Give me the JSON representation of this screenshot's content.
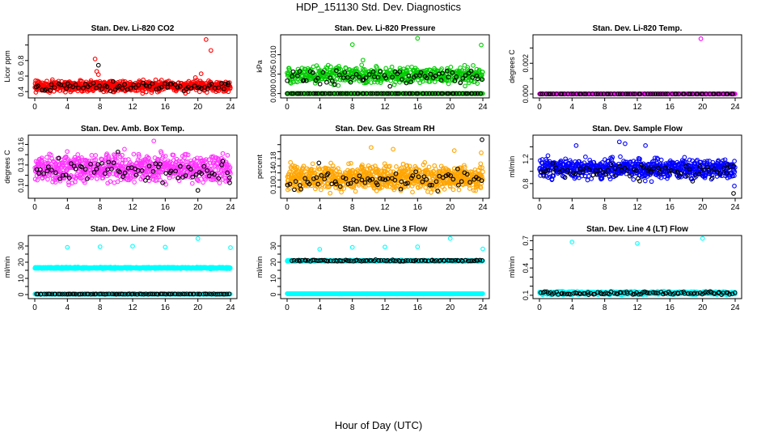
{
  "figure": {
    "title": "HDP_151130  Std. Dev. Diagnostics",
    "xlabel": "Hour of Day (UTC)"
  },
  "chart_data": [
    {
      "type": "scatter",
      "title": "Stan. Dev. Li-820 CO2",
      "xlabel": "",
      "ylabel": "Licor ppm",
      "xlim": [
        0,
        24
      ],
      "ylim": [
        0.35,
        1.1
      ],
      "xticks": [
        0,
        4,
        8,
        12,
        16,
        20,
        24
      ],
      "yticks": [
        0.4,
        0.6,
        0.8,
        1.0
      ],
      "ytick_labels": [
        "0.4",
        "0.6",
        "0.8",
        ""
      ],
      "grid": false,
      "series": [
        {
          "color": "#ff0000",
          "base": 0.47,
          "spread": 0.05,
          "density": 32,
          "x_range": [
            0,
            24
          ],
          "points": [
            [
              7.4,
              0.82
            ],
            [
              7.6,
              0.66
            ],
            [
              7.8,
              0.62
            ],
            [
              19.7,
              0.58
            ],
            [
              20.4,
              0.63
            ],
            [
              21.0,
              1.07
            ],
            [
              21.6,
              0.93
            ]
          ]
        },
        {
          "color": "#000000",
          "base": 0.47,
          "spread": 0.04,
          "density": 3,
          "x_range": [
            0,
            24
          ],
          "points": [
            [
              7.8,
              0.74
            ],
            [
              23.7,
              0.51
            ]
          ]
        }
      ]
    },
    {
      "type": "scatter",
      "title": "Stan. Dev. Li-820 Pressure",
      "xlabel": "",
      "ylabel": "kPa",
      "xlim": [
        0,
        24
      ],
      "ylim": [
        -0.0005,
        0.0145
      ],
      "xticks": [
        0,
        4,
        8,
        12,
        16,
        20,
        24
      ],
      "yticks": [
        0.0,
        0.005,
        0.01
      ],
      "ytick_labels": [
        "0.000",
        "0.005",
        "0.010"
      ],
      "grid": false,
      "series": [
        {
          "color": "#00cc00",
          "base": 0.0,
          "spread": 0.0,
          "density": 22,
          "x_range": [
            0,
            24
          ],
          "points": []
        },
        {
          "color": "#00cc00",
          "base": 0.0048,
          "spread": 0.0016,
          "density": 22,
          "x_range": [
            0,
            24
          ],
          "points": [
            [
              8.0,
              0.0126
            ],
            [
              9.3,
              0.0086
            ],
            [
              16.0,
              0.0142
            ],
            [
              23.8,
              0.0125
            ]
          ]
        },
        {
          "color": "#000000",
          "base": 0.0,
          "spread": 0.0,
          "density": 3,
          "x_range": [
            0,
            24
          ],
          "points": []
        },
        {
          "color": "#000000",
          "base": 0.0045,
          "spread": 0.0014,
          "density": 3,
          "x_range": [
            0,
            24
          ],
          "points": []
        }
      ]
    },
    {
      "type": "scatter",
      "title": "Stan. Dev. Li-820 Temp.",
      "xlabel": "",
      "ylabel": "degrees C",
      "xlim": [
        0,
        24
      ],
      "ylim": [
        -0.0001,
        0.0037
      ],
      "xticks": [
        0,
        4,
        8,
        12,
        16,
        20,
        24
      ],
      "yticks": [
        0.0,
        0.001,
        0.002,
        0.003
      ],
      "ytick_labels": [
        "0.000",
        "",
        "0.002",
        ""
      ],
      "grid": false,
      "series": [
        {
          "color": "#ff00ff",
          "base": 0.0,
          "spread": 0.0,
          "density": 30,
          "x_range": [
            0,
            24
          ],
          "points": [
            [
              19.8,
              0.0036
            ]
          ]
        },
        {
          "color": "#000000",
          "base": 0.0,
          "spread": 0.0,
          "density": 3,
          "x_range": [
            0,
            24
          ],
          "points": []
        }
      ]
    },
    {
      "type": "scatter",
      "title": "Stan. Dev. Amb. Box Temp.",
      "xlabel": "",
      "ylabel": "degrees C",
      "xlim": [
        0,
        24
      ],
      "ylim": [
        0.085,
        0.17
      ],
      "xticks": [
        0,
        4,
        8,
        12,
        16,
        20,
        24
      ],
      "yticks": [
        0.1,
        0.13,
        0.16
      ],
      "ytick_labels": [
        "0.10",
        "0.13",
        "0.16"
      ],
      "extra_yticks": [
        0.115,
        0.145
      ],
      "grid": false,
      "series": [
        {
          "color": "#ff33ff",
          "base": 0.125,
          "spread": 0.015,
          "density": 30,
          "x_range": [
            0,
            24
          ],
          "points": [
            [
              14.6,
              0.165
            ],
            [
              11.0,
              0.153
            ]
          ]
        },
        {
          "color": "#000000",
          "base": 0.122,
          "spread": 0.012,
          "density": 3,
          "x_range": [
            0,
            24
          ],
          "points": [
            [
              10.2,
              0.149
            ],
            [
              20.0,
              0.093
            ],
            [
              23.9,
              0.104
            ]
          ]
        }
      ]
    },
    {
      "type": "scatter",
      "title": "Stan. Dev. Gas Stream RH",
      "xlabel": "",
      "ylabel": "percent",
      "xlim": [
        0,
        24
      ],
      "ylim": [
        0.075,
        0.24
      ],
      "xticks": [
        0,
        4,
        8,
        12,
        16,
        20,
        24
      ],
      "yticks": [
        0.1,
        0.12,
        0.14,
        0.16,
        0.18,
        0.2,
        0.22
      ],
      "ytick_labels": [
        "0.10",
        "",
        "0.14",
        "",
        "0.18",
        "",
        ""
      ],
      "grid": false,
      "series": [
        {
          "color": "#ffa500",
          "base": 0.125,
          "spread": 0.025,
          "density": 36,
          "x_range": [
            0,
            24
          ],
          "points": [
            [
              10.3,
              0.212
            ],
            [
              13.0,
              0.207
            ],
            [
              20.5,
              0.203
            ],
            [
              23.8,
              0.197
            ]
          ]
        },
        {
          "color": "#000000",
          "base": 0.118,
          "spread": 0.02,
          "density": 3,
          "x_range": [
            0,
            24
          ],
          "points": [
            [
              23.9,
              0.234
            ],
            [
              3.9,
              0.168
            ]
          ]
        }
      ]
    },
    {
      "type": "scatter",
      "title": "Stan. Dev. Sample Flow",
      "xlabel": "",
      "ylabel": "ml/min",
      "xlim": [
        0,
        24
      ],
      "ylim": [
        0.6,
        1.55
      ],
      "xticks": [
        0,
        4,
        8,
        12,
        16,
        20,
        24
      ],
      "yticks": [
        0.8,
        1.0,
        1.2,
        1.4
      ],
      "ytick_labels": [
        "0.8",
        "",
        "1.2",
        ""
      ],
      "grid": false,
      "series": [
        {
          "color": "#0000ff",
          "base": 1.05,
          "spread": 0.12,
          "density": 30,
          "x_range": [
            0,
            24
          ],
          "points": [
            [
              4.5,
              1.42
            ],
            [
              9.8,
              1.48
            ],
            [
              10.5,
              1.45
            ],
            [
              13.0,
              1.42
            ],
            [
              23.9,
              0.76
            ]
          ]
        },
        {
          "color": "#000000",
          "base": 1.0,
          "spread": 0.09,
          "density": 3,
          "x_range": [
            0,
            24
          ],
          "points": [
            [
              23.8,
              0.64
            ],
            [
              12.3,
              0.84
            ]
          ]
        }
      ]
    },
    {
      "type": "scatter",
      "title": "Stan. Dev. Line 2 Flow",
      "xlabel": "",
      "ylabel": "ml/min",
      "xlim": [
        0,
        24
      ],
      "ylim": [
        -1,
        35
      ],
      "xticks": [
        0,
        4,
        8,
        12,
        16,
        20,
        24
      ],
      "yticks": [
        0,
        5,
        10,
        15,
        20,
        25,
        30
      ],
      "ytick_labels": [
        "0",
        "",
        "10",
        "",
        "20",
        "",
        "30"
      ],
      "grid": false,
      "series": [
        {
          "color": "#00ffff",
          "base": 16.5,
          "spread": 0.3,
          "density": 40,
          "x_range": [
            0,
            24
          ],
          "points": [
            [
              4.0,
              29.2
            ],
            [
              8.0,
              29.5
            ],
            [
              12.0,
              29.9
            ],
            [
              16.0,
              29.3
            ],
            [
              20.0,
              34.6
            ],
            [
              24.0,
              29.0
            ]
          ]
        },
        {
          "color": "#00ffff",
          "base": 0.3,
          "spread": 0.1,
          "density": 30,
          "x_range": [
            0,
            24
          ],
          "points": []
        },
        {
          "color": "#000000",
          "base": 0.3,
          "spread": 0.1,
          "density": 4,
          "x_range": [
            0,
            24
          ],
          "points": []
        }
      ]
    },
    {
      "type": "scatter",
      "title": "Stan. Dev. Line 3 Flow",
      "xlabel": "",
      "ylabel": "ml/min",
      "xlim": [
        0,
        24
      ],
      "ylim": [
        -1,
        35
      ],
      "xticks": [
        0,
        4,
        8,
        12,
        16,
        20,
        24
      ],
      "yticks": [
        0,
        5,
        10,
        15,
        20,
        25,
        30
      ],
      "ytick_labels": [
        "0",
        "",
        "10",
        "",
        "20",
        "",
        "30"
      ],
      "grid": false,
      "series": [
        {
          "color": "#00ffff",
          "base": 20.8,
          "spread": 0.3,
          "density": 36,
          "x_range": [
            0,
            24
          ],
          "points": [
            [
              4.0,
              28.0
            ],
            [
              8.0,
              29.2
            ],
            [
              12.0,
              29.4
            ],
            [
              16.0,
              29.5
            ],
            [
              20.0,
              34.7
            ],
            [
              24.0,
              28.2
            ]
          ]
        },
        {
          "color": "#000000",
          "base": 21.0,
          "spread": 0.3,
          "density": 4,
          "x_range": [
            0.5,
            24
          ],
          "points": []
        },
        {
          "color": "#00ffff",
          "base": 0.5,
          "spread": 0.1,
          "density": 30,
          "x_range": [
            0,
            24
          ],
          "points": []
        }
      ]
    },
    {
      "type": "scatter",
      "title": "Stan. Dev. Line 4 (LT) Flow",
      "xlabel": "",
      "ylabel": "ml/min",
      "xlim": [
        0,
        24
      ],
      "ylim": [
        0.09,
        0.73
      ],
      "xticks": [
        0,
        4,
        8,
        12,
        16,
        20,
        24
      ],
      "yticks": [
        0.1,
        0.2,
        0.3,
        0.4,
        0.5,
        0.6,
        0.7
      ],
      "ytick_labels": [
        "0.1",
        "",
        "",
        "0.4",
        "",
        "",
        "0.7"
      ],
      "grid": false,
      "series": [
        {
          "color": "#00ffff",
          "base": 0.125,
          "spread": 0.012,
          "density": 36,
          "x_range": [
            0,
            24
          ],
          "points": [
            [
              4.0,
              0.685
            ],
            [
              12.0,
              0.67
            ],
            [
              20.0,
              0.725
            ]
          ]
        },
        {
          "color": "#000000",
          "base": 0.125,
          "spread": 0.012,
          "density": 4,
          "x_range": [
            0,
            24
          ],
          "points": []
        }
      ]
    }
  ]
}
